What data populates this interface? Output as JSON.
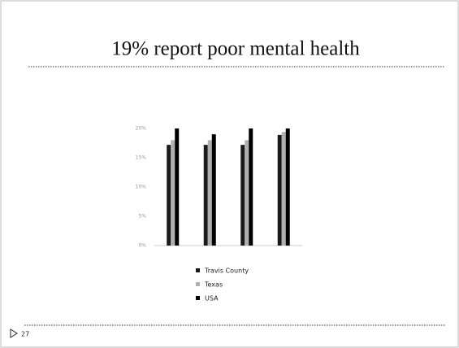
{
  "slide_title": "19% report poor mental health",
  "page_number": "27",
  "chart_data": {
    "type": "bar",
    "categories": [
      null,
      null,
      null,
      null
    ],
    "series": [
      {
        "name": "Travis County",
        "color": "#1a1a1a",
        "values": [
          17.2,
          17.2,
          17.2,
          18.9
        ]
      },
      {
        "name": "Texas",
        "color": "#b0b0b0",
        "values": [
          18.0,
          18.0,
          18.0,
          19.4
        ]
      },
      {
        "name": "USA",
        "color": "#000000",
        "values": [
          20.0,
          19.0,
          20.0,
          20.0
        ]
      }
    ],
    "ylim": [
      0,
      20
    ],
    "yticks": [
      {
        "value": 0,
        "label": "0%"
      },
      {
        "value": 5,
        "label": "5%"
      },
      {
        "value": 10,
        "label": "10%"
      },
      {
        "value": 15,
        "label": "15%"
      },
      {
        "value": 20,
        "label": "20%"
      }
    ],
    "grid": false
  }
}
